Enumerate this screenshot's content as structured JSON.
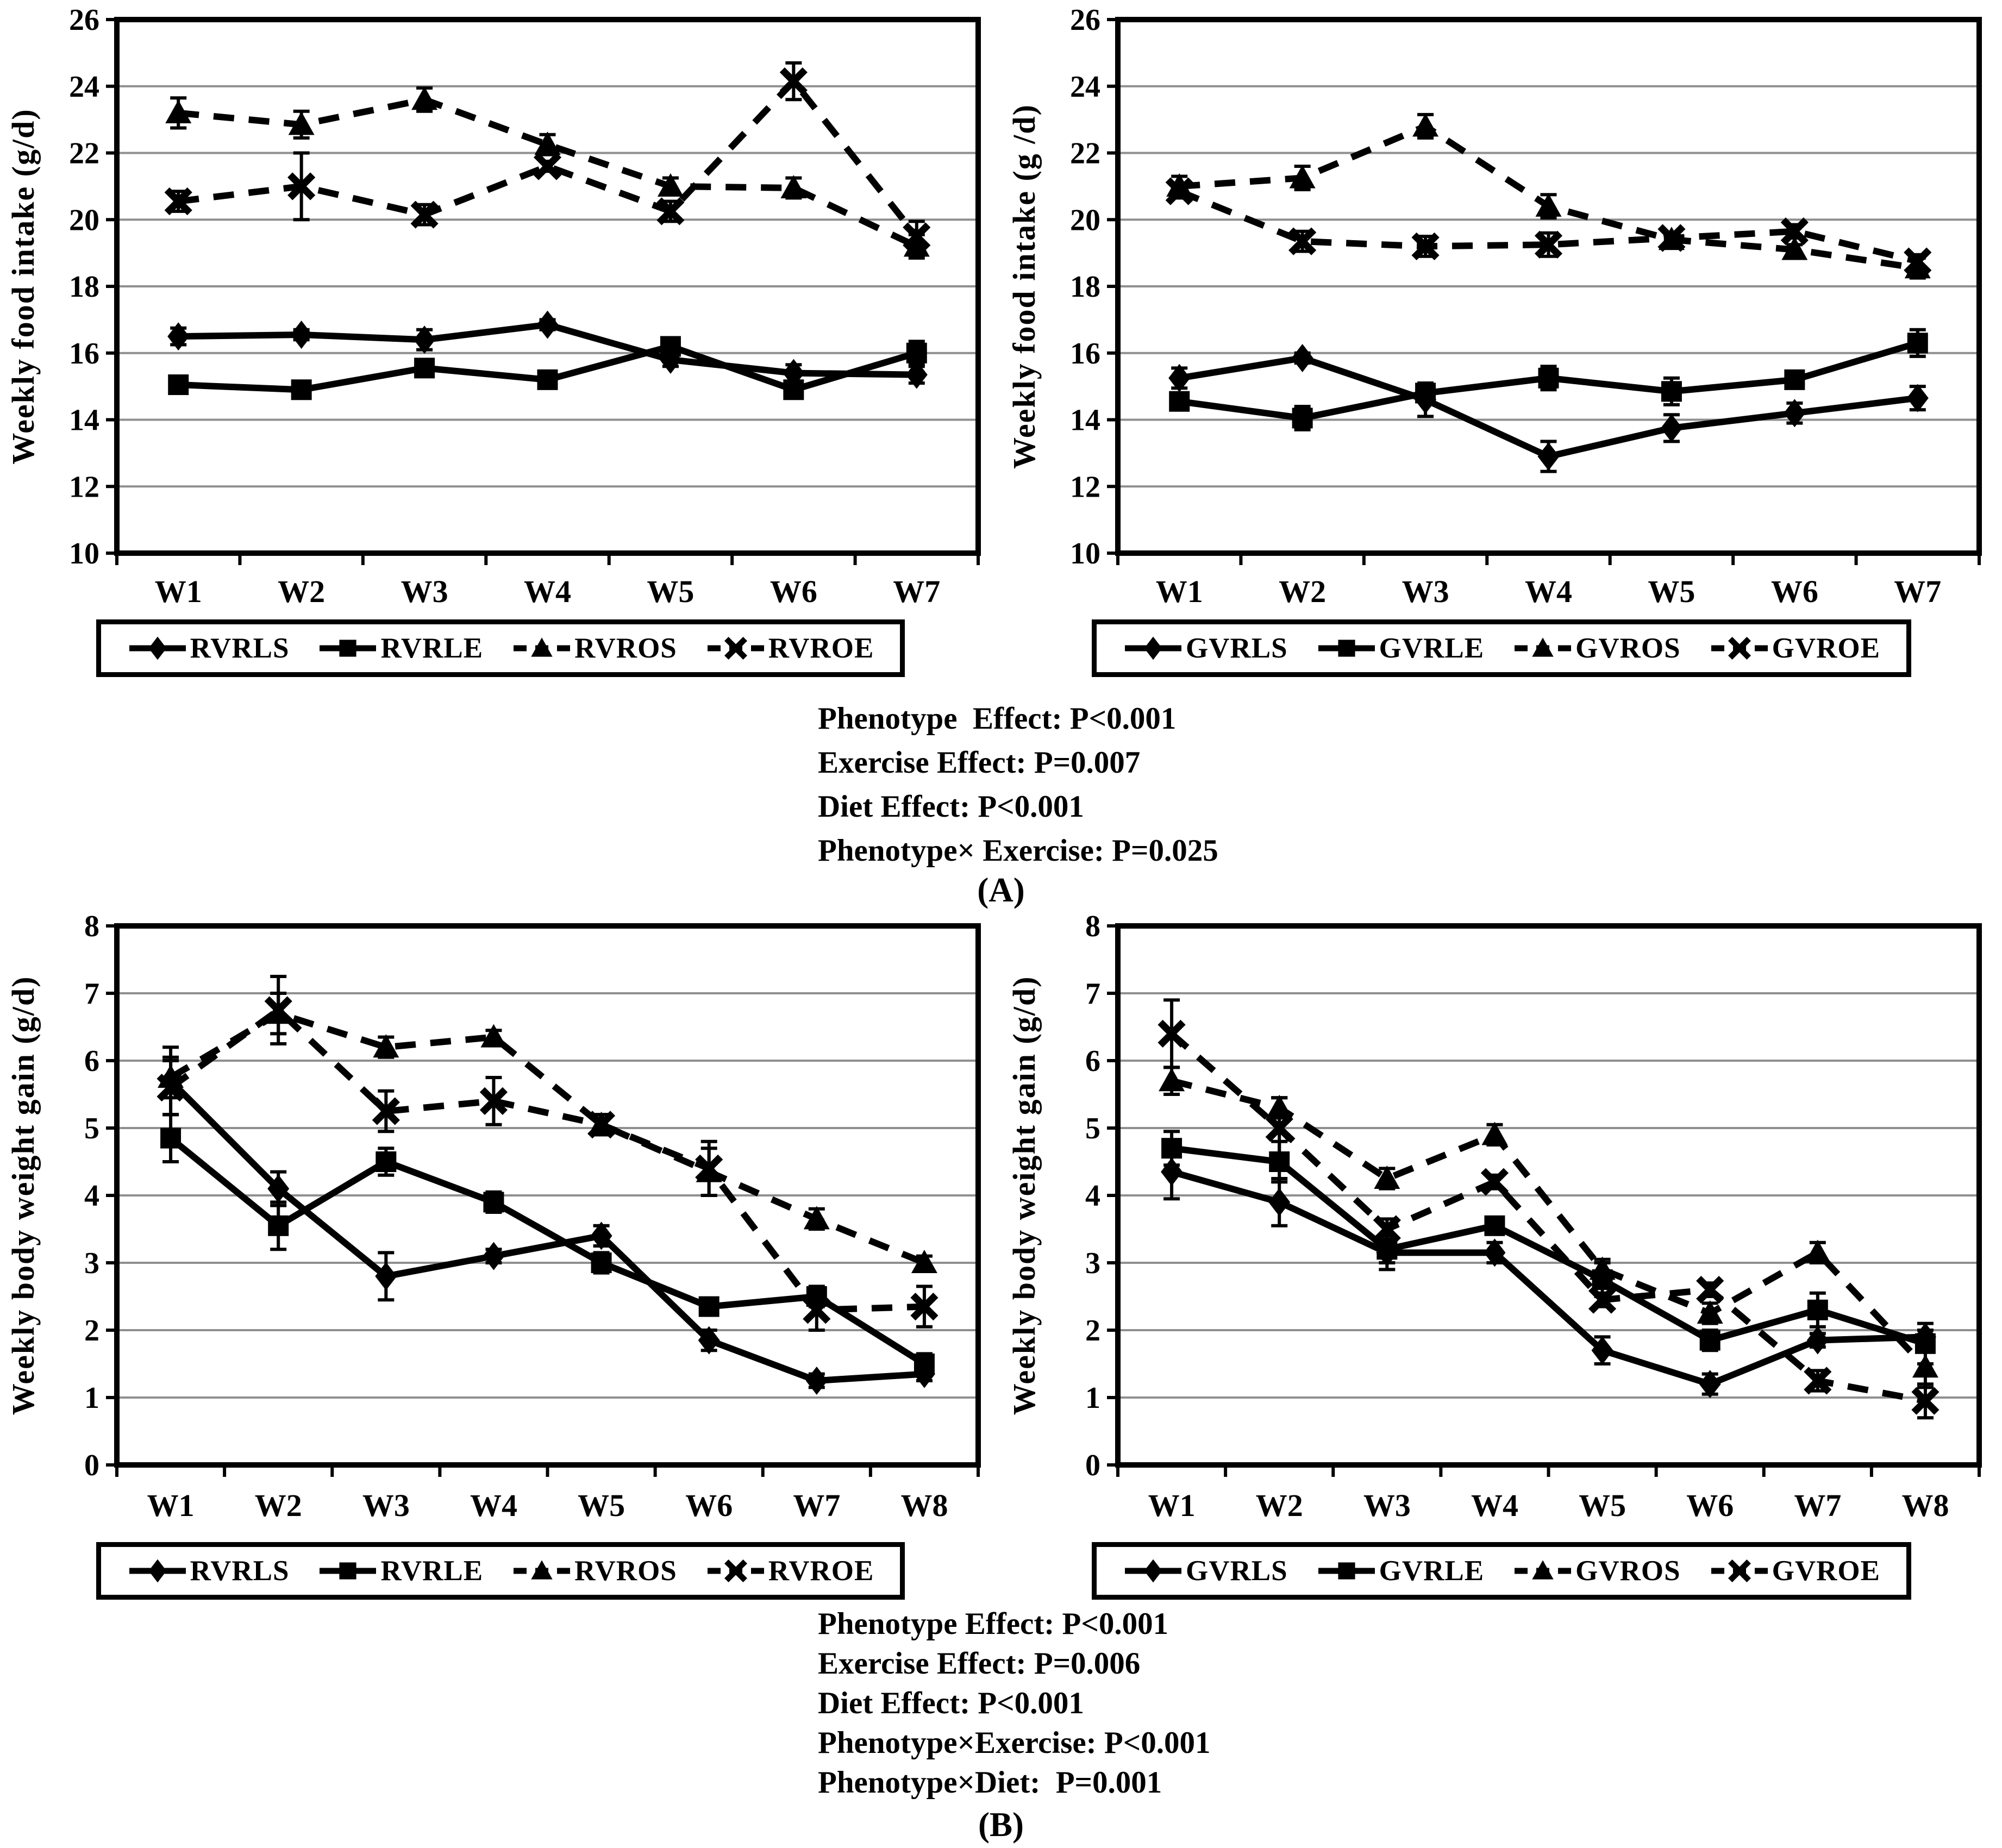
{
  "figure": {
    "background": "#ffffff",
    "text_color": "#000000",
    "gridline_color": "#8f8f8f",
    "line_color": "#000000"
  },
  "panel_a": {
    "label": "(A)",
    "stats_lines": [
      "Phenotype  Effect: P<0.001",
      "Exercise Effect: P=0.007",
      "Diet Effect: P<0.001",
      "Phenotype× Exercise: P=0.025"
    ]
  },
  "panel_b": {
    "label": "(B)",
    "stats_lines": [
      "Phenotype Effect: P<0.001",
      "Exercise Effect: P=0.006",
      "Diet Effect: P<0.001",
      "Phenotype×Exercise: P<0.001",
      "Phenotype×Diet:  P=0.001"
    ]
  },
  "chart_data": [
    {
      "type": "line",
      "panel": "A",
      "position": "left",
      "ylabel": "Weekly food intake (g/d)",
      "xlabel": "",
      "ylim": [
        10,
        26
      ],
      "ytick_step": 2,
      "grid": true,
      "legend_position": "bottom",
      "categories": [
        "W1",
        "W2",
        "W3",
        "W4",
        "W5",
        "W6",
        "W7"
      ],
      "series": [
        {
          "name": "RVRLS",
          "marker": "diamond",
          "line": "solid",
          "values": [
            16.5,
            16.55,
            16.4,
            16.85,
            15.8,
            15.4,
            15.35
          ],
          "errors": [
            0.25,
            0.15,
            0.3,
            0.15,
            0.2,
            0.25,
            0.25
          ]
        },
        {
          "name": "RVRLE",
          "marker": "square",
          "line": "solid",
          "values": [
            15.05,
            14.9,
            15.55,
            15.2,
            16.2,
            14.9,
            16.0
          ],
          "errors": [
            0.2,
            0.2,
            0.2,
            0.15,
            0.2,
            0.2,
            0.35
          ]
        },
        {
          "name": "RVROS",
          "marker": "triangle",
          "line": "dashed",
          "values": [
            23.2,
            22.85,
            23.6,
            22.25,
            21.0,
            20.95,
            19.2
          ],
          "errors": [
            0.45,
            0.4,
            0.35,
            0.3,
            0.25,
            0.3,
            0.35
          ]
        },
        {
          "name": "RVROE",
          "marker": "x",
          "line": "dashed",
          "values": [
            20.55,
            21.0,
            20.15,
            21.6,
            20.25,
            24.15,
            19.5
          ],
          "errors": [
            0.3,
            1.0,
            0.3,
            0.15,
            0.3,
            0.55,
            0.45
          ]
        }
      ]
    },
    {
      "type": "line",
      "panel": "A",
      "position": "right",
      "ylabel": "Weekly food intake (g /d)",
      "xlabel": "",
      "ylim": [
        10,
        26
      ],
      "ytick_step": 2,
      "grid": true,
      "legend_position": "bottom",
      "categories": [
        "W1",
        "W2",
        "W3",
        "W4",
        "W5",
        "W6",
        "W7"
      ],
      "series": [
        {
          "name": "GVRLS",
          "marker": "diamond",
          "line": "solid",
          "values": [
            15.25,
            15.85,
            14.6,
            12.9,
            13.75,
            14.2,
            14.65
          ],
          "errors": [
            0.3,
            0.15,
            0.5,
            0.45,
            0.4,
            0.3,
            0.35
          ]
        },
        {
          "name": "GVRLE",
          "marker": "square",
          "line": "solid",
          "values": [
            14.55,
            14.05,
            14.8,
            15.25,
            14.85,
            15.2,
            16.3
          ],
          "errors": [
            0.25,
            0.35,
            0.15,
            0.35,
            0.4,
            0.25,
            0.4
          ]
        },
        {
          "name": "GVROS",
          "marker": "triangle",
          "line": "dashed",
          "values": [
            21.0,
            21.25,
            22.8,
            20.4,
            19.4,
            19.1,
            18.55
          ],
          "errors": [
            0.3,
            0.35,
            0.35,
            0.35,
            0.15,
            0.15,
            0.3
          ]
        },
        {
          "name": "GVROE",
          "marker": "x",
          "line": "dashed",
          "values": [
            20.85,
            19.35,
            19.2,
            19.25,
            19.45,
            19.65,
            18.75
          ],
          "errors": [
            0.2,
            0.3,
            0.3,
            0.35,
            0.15,
            0.2,
            0.2
          ]
        }
      ]
    },
    {
      "type": "line",
      "panel": "B",
      "position": "left",
      "ylabel": "Weekly body weight gain (g/d)",
      "xlabel": "",
      "ylim": [
        0,
        8
      ],
      "ytick_step": 1,
      "grid": true,
      "legend_position": "bottom",
      "categories": [
        "W1",
        "W2",
        "W3",
        "W4",
        "W5",
        "W6",
        "W7",
        "W8"
      ],
      "series": [
        {
          "name": "RVRLS",
          "marker": "diamond",
          "line": "solid",
          "values": [
            5.7,
            4.1,
            2.8,
            3.1,
            3.4,
            1.85,
            1.25,
            1.35
          ],
          "errors": [
            0.5,
            0.25,
            0.35,
            0.1,
            0.15,
            0.15,
            0.1,
            0.1
          ]
        },
        {
          "name": "RVRLE",
          "marker": "square",
          "line": "solid",
          "values": [
            4.85,
            3.55,
            4.5,
            3.9,
            3.0,
            2.35,
            2.5,
            1.5
          ],
          "errors": [
            0.35,
            0.35,
            0.2,
            0.15,
            0.15,
            0.1,
            0.15,
            0.15
          ]
        },
        {
          "name": "RVROS",
          "marker": "triangle",
          "line": "dashed",
          "values": [
            5.75,
            6.7,
            6.2,
            6.35,
            5.05,
            4.35,
            3.65,
            3.0
          ],
          "errors": [
            0.3,
            0.3,
            0.15,
            0.1,
            0.15,
            0.35,
            0.15,
            0.1
          ]
        },
        {
          "name": "RVROE",
          "marker": "x",
          "line": "dashed",
          "values": [
            5.6,
            6.75,
            5.25,
            5.4,
            5.05,
            4.4,
            2.3,
            2.35
          ],
          "errors": [
            0.4,
            0.5,
            0.3,
            0.35,
            0.15,
            0.4,
            0.3,
            0.3
          ]
        }
      ]
    },
    {
      "type": "line",
      "panel": "B",
      "position": "right",
      "ylabel": "Weekly body weight gain (g/d)",
      "xlabel": "",
      "ylim": [
        0,
        8
      ],
      "ytick_step": 1,
      "grid": true,
      "legend_position": "bottom",
      "categories": [
        "W1",
        "W2",
        "W3",
        "W4",
        "W5",
        "W6",
        "W7",
        "W8"
      ],
      "series": [
        {
          "name": "GVRLS",
          "marker": "diamond",
          "line": "solid",
          "values": [
            4.35,
            3.9,
            3.15,
            3.15,
            1.7,
            1.2,
            1.85,
            1.9
          ],
          "errors": [
            0.4,
            0.35,
            0.25,
            0.15,
            0.2,
            0.15,
            0.1,
            0.1
          ]
        },
        {
          "name": "GVRLE",
          "marker": "square",
          "line": "solid",
          "values": [
            4.7,
            4.5,
            3.2,
            3.55,
            2.75,
            1.85,
            2.3,
            1.8
          ],
          "errors": [
            0.25,
            0.3,
            0.2,
            0.1,
            0.25,
            0.15,
            0.25,
            0.3
          ]
        },
        {
          "name": "GVROS",
          "marker": "triangle",
          "line": "dashed",
          "values": [
            5.7,
            5.3,
            4.25,
            4.9,
            2.9,
            2.25,
            3.15,
            1.45
          ],
          "errors": [
            0.2,
            0.15,
            0.15,
            0.15,
            0.15,
            0.15,
            0.15,
            0.3
          ]
        },
        {
          "name": "GVROE",
          "marker": "x",
          "line": "dashed",
          "values": [
            6.4,
            5.0,
            3.5,
            4.2,
            2.45,
            2.6,
            1.25,
            0.95
          ],
          "errors": [
            0.5,
            0.45,
            0.15,
            0.1,
            0.1,
            0.1,
            0.15,
            0.25
          ]
        }
      ]
    }
  ]
}
